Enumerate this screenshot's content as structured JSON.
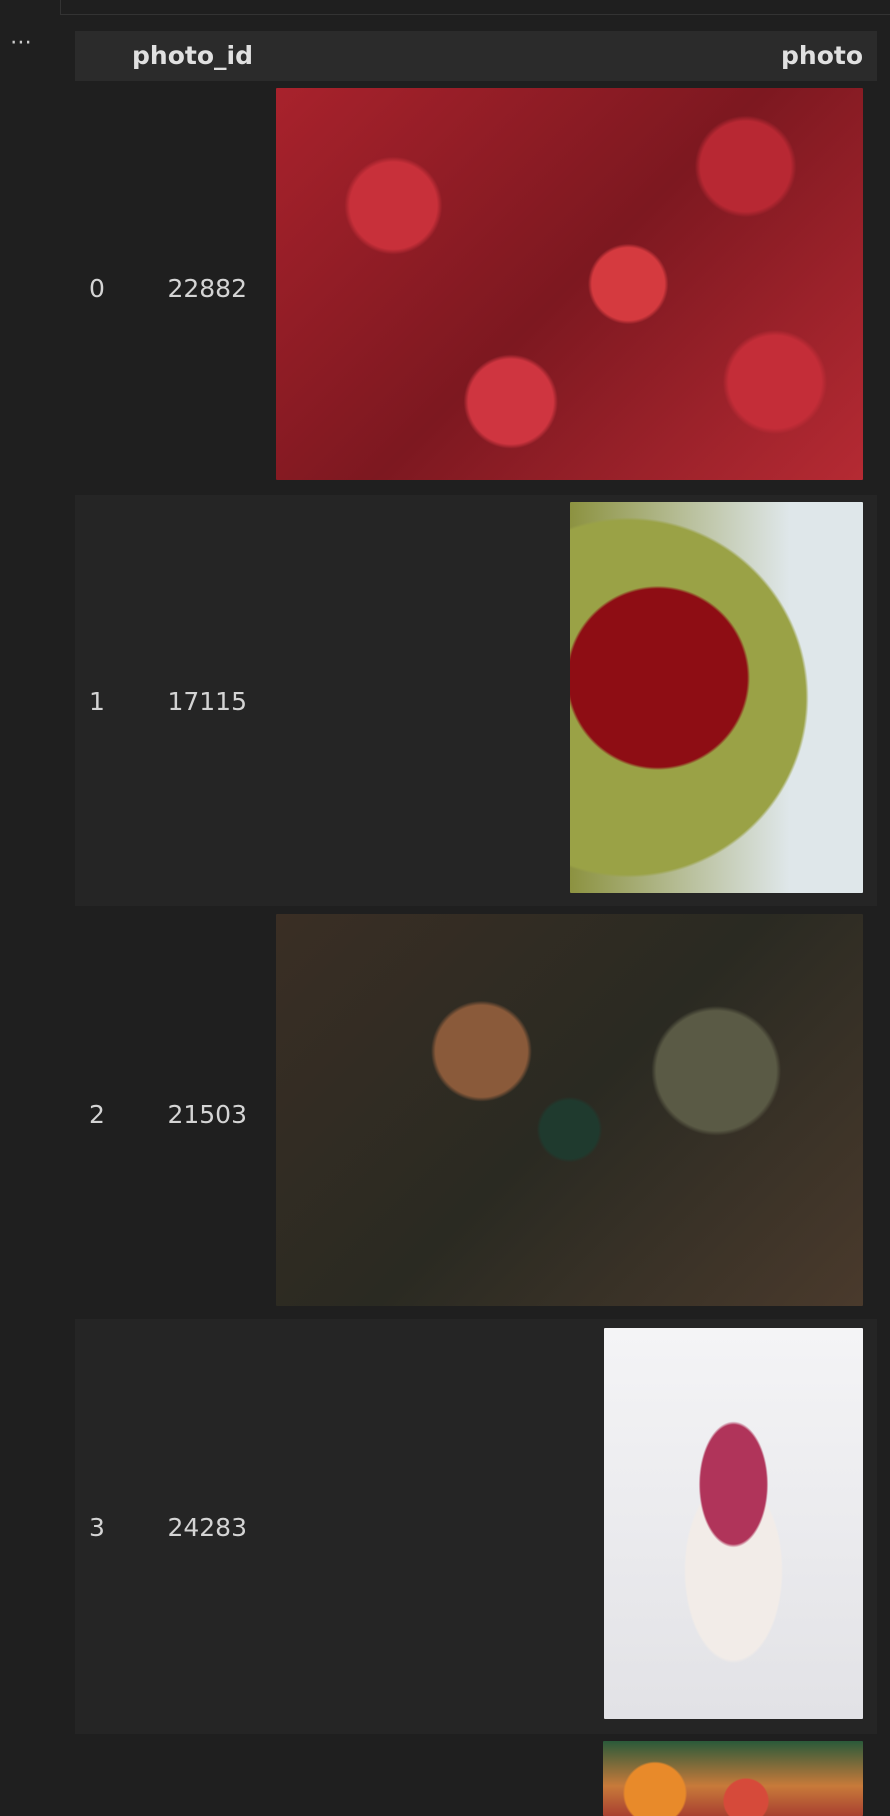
{
  "table": {
    "columns": [
      "photo_id",
      "photo"
    ],
    "rows": [
      [
        "0",
        "22882"
      ],
      [
        "1",
        "17115"
      ],
      [
        "2",
        "21503"
      ],
      [
        "3",
        "24283"
      ]
    ]
  }
}
